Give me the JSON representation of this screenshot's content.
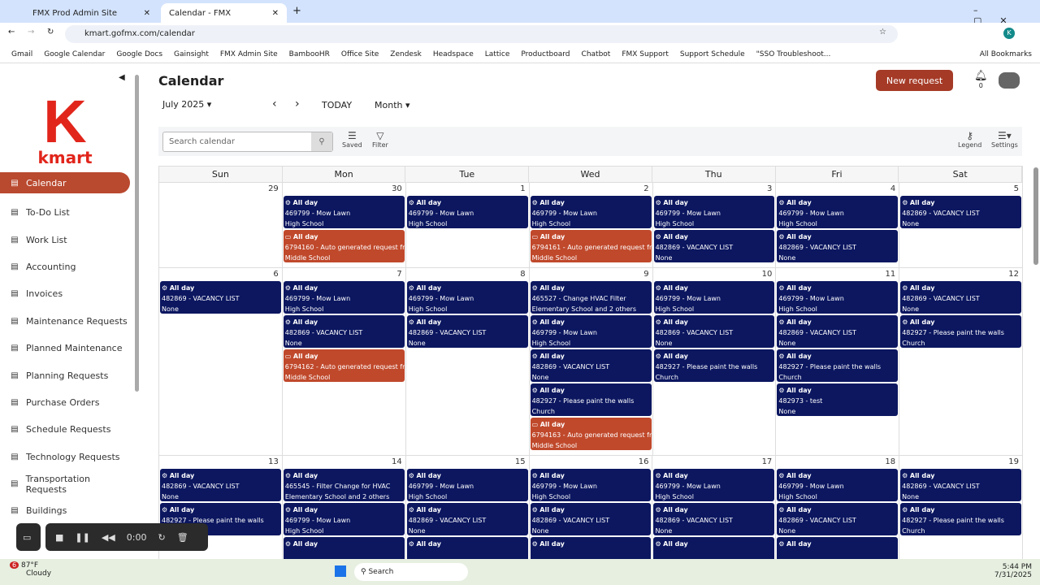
{
  "browser": {
    "tabs": [
      {
        "label": "FMX Prod Admin Site"
      },
      {
        "label": "Calendar - FMX"
      }
    ],
    "url": "kmart.gofmx.com/calendar",
    "bookmarks": [
      "Gmail",
      "Google Calendar",
      "Google Docs",
      "Gainsight",
      "FMX Admin Site",
      "BambooHR",
      "Office Site",
      "Zendesk",
      "Headspace",
      "Lattice",
      "Productboard",
      "Chatbot",
      "FMX Support",
      "Support Schedule",
      "\"SSO Troubleshoot...",
      "All Bookmarks"
    ],
    "profile": "K"
  },
  "logo": {
    "k": "K",
    "word": "kmart"
  },
  "sidebar": {
    "items": [
      {
        "label": "Calendar",
        "icon": "calendar-icon",
        "active": true
      },
      {
        "label": "To-Do List",
        "icon": "list-icon"
      },
      {
        "label": "Work List",
        "icon": "list-icon"
      },
      {
        "label": "Accounting",
        "icon": "coins-icon"
      },
      {
        "label": "Invoices",
        "icon": "invoice-icon"
      },
      {
        "label": "Maintenance Requests",
        "icon": "wrench-icon"
      },
      {
        "label": "Planned Maintenance",
        "icon": "gears-icon"
      },
      {
        "label": "Planning Requests",
        "icon": "planning-icon"
      },
      {
        "label": "Purchase Orders",
        "icon": "cart-icon"
      },
      {
        "label": "Schedule Requests",
        "icon": "clock-icon"
      },
      {
        "label": "Technology Requests",
        "icon": "devices-icon"
      },
      {
        "label": "Transportation Requests",
        "icon": "bus-icon"
      },
      {
        "label": "Buildings",
        "icon": "building-icon"
      }
    ]
  },
  "header": {
    "title": "Calendar",
    "month": "July 2025",
    "today": "TODAY",
    "view": "Month",
    "new_request": "New request",
    "notifications": "0"
  },
  "toolbar": {
    "search_placeholder": "Search calendar",
    "saved": "Saved",
    "filter": "Filter",
    "legend": "Legend",
    "settings": "Settings"
  },
  "calendar": {
    "weekdays": [
      "Sun",
      "Mon",
      "Tue",
      "Wed",
      "Thu",
      "Fri",
      "Sat"
    ],
    "colors": {
      "work_order": "#0c1760",
      "request": "#c0492c"
    },
    "weeks": [
      [
        {
          "d": "29",
          "e": []
        },
        {
          "d": "30",
          "e": [
            [
              "wo",
              "469799 - Mow Lawn",
              "High School"
            ],
            [
              "rq",
              "6794160 - Auto generated request from",
              "Middle School"
            ]
          ]
        },
        {
          "d": "1",
          "e": [
            [
              "wo",
              "469799 - Mow Lawn",
              "High School"
            ]
          ]
        },
        {
          "d": "2",
          "e": [
            [
              "wo",
              "469799 - Mow Lawn",
              "High School"
            ],
            [
              "rq",
              "6794161 - Auto generated request from",
              "Middle School"
            ]
          ]
        },
        {
          "d": "3",
          "e": [
            [
              "wo",
              "469799 - Mow Lawn",
              "High School"
            ],
            [
              "wo",
              "482869 - VACANCY LIST",
              "None"
            ]
          ]
        },
        {
          "d": "4",
          "e": [
            [
              "wo",
              "469799 - Mow Lawn",
              "High School"
            ],
            [
              "wo",
              "482869 - VACANCY LIST",
              "None"
            ]
          ]
        },
        {
          "d": "5",
          "e": [
            [
              "wo",
              "482869 - VACANCY LIST",
              "None"
            ]
          ]
        }
      ],
      [
        {
          "d": "6",
          "e": [
            [
              "wo",
              "482869 - VACANCY LIST",
              "None"
            ]
          ]
        },
        {
          "d": "7",
          "e": [
            [
              "wo",
              "469799 - Mow Lawn",
              "High School"
            ],
            [
              "wo",
              "482869 - VACANCY LIST",
              "None"
            ],
            [
              "rq",
              "6794162 - Auto generated request from",
              "Middle School"
            ]
          ]
        },
        {
          "d": "8",
          "e": [
            [
              "wo",
              "469799 - Mow Lawn",
              "High School"
            ],
            [
              "wo",
              "482869 - VACANCY LIST",
              "None"
            ]
          ]
        },
        {
          "d": "9",
          "e": [
            [
              "wo",
              "465527 - Change HVAC Filter",
              "Elementary School and 2 others"
            ],
            [
              "wo",
              "469799 - Mow Lawn",
              "High School"
            ],
            [
              "wo",
              "482869 - VACANCY LIST",
              "None"
            ],
            [
              "wo",
              "482927 - Please paint the walls",
              "Church"
            ],
            [
              "rq",
              "6794163 - Auto generated request from",
              "Middle School"
            ]
          ]
        },
        {
          "d": "10",
          "e": [
            [
              "wo",
              "469799 - Mow Lawn",
              "High School"
            ],
            [
              "wo",
              "482869 - VACANCY LIST",
              "None"
            ],
            [
              "wo",
              "482927 - Please paint the walls",
              "Church"
            ]
          ]
        },
        {
          "d": "11",
          "e": [
            [
              "wo",
              "469799 - Mow Lawn",
              "High School"
            ],
            [
              "wo",
              "482869 - VACANCY LIST",
              "None"
            ],
            [
              "wo",
              "482927 - Please paint the walls",
              "Church"
            ],
            [
              "wo",
              "482973 - test",
              "None"
            ]
          ]
        },
        {
          "d": "12",
          "e": [
            [
              "wo",
              "482869 - VACANCY LIST",
              "None"
            ],
            [
              "wo",
              "482927 - Please paint the walls",
              "Church"
            ]
          ]
        }
      ],
      [
        {
          "d": "13",
          "e": [
            [
              "wo",
              "482869 - VACANCY LIST",
              "None"
            ],
            [
              "wo",
              "482927 - Please paint the walls",
              "Church"
            ]
          ]
        },
        {
          "d": "14",
          "e": [
            [
              "wo",
              "465545 - Filter Change for HVAC",
              "Elementary School and 2 others"
            ],
            [
              "wo",
              "469799 - Mow Lawn",
              "High School"
            ],
            [
              "wo",
              "",
              ""
            ]
          ]
        },
        {
          "d": "15",
          "e": [
            [
              "wo",
              "469799 - Mow Lawn",
              "High School"
            ],
            [
              "wo",
              "482869 - VACANCY LIST",
              "None"
            ],
            [
              "wo",
              "",
              ""
            ]
          ]
        },
        {
          "d": "16",
          "e": [
            [
              "wo",
              "469799 - Mow Lawn",
              "High School"
            ],
            [
              "wo",
              "482869 - VACANCY LIST",
              "None"
            ],
            [
              "wo",
              "",
              ""
            ]
          ]
        },
        {
          "d": "17",
          "e": [
            [
              "wo",
              "469799 - Mow Lawn",
              "High School"
            ],
            [
              "wo",
              "482869 - VACANCY LIST",
              "None"
            ],
            [
              "wo",
              "",
              ""
            ]
          ]
        },
        {
          "d": "18",
          "e": [
            [
              "wo",
              "469799 - Mow Lawn",
              "High School"
            ],
            [
              "wo",
              "482869 - VACANCY LIST",
              "None"
            ],
            [
              "wo",
              "",
              ""
            ]
          ]
        },
        {
          "d": "19",
          "e": [
            [
              "wo",
              "482869 - VACANCY LIST",
              "None"
            ],
            [
              "wo",
              "482927 - Please paint the walls",
              "Church"
            ]
          ]
        }
      ]
    ],
    "all_day": "All day"
  },
  "recorder": {
    "time": "0:00"
  },
  "taskbar": {
    "weather_temp": "87°F",
    "weather_desc": "Cloudy",
    "weather_badge": "6",
    "search": "Search",
    "time": "5:44 PM",
    "date": "7/31/2025"
  }
}
